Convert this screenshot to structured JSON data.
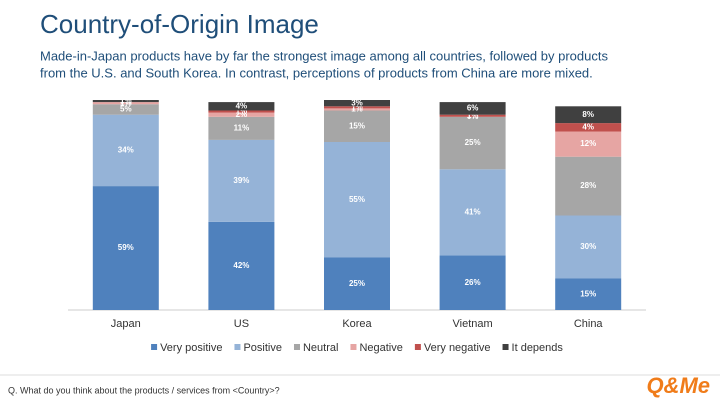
{
  "chart_data": {
    "type": "stacked-bar",
    "title": "Country-of-Origin Image",
    "subtitle": [
      "Made-in-Japan products have by far the strongest image among all countries, followed by products",
      "from the U.S. and South Korea. In contrast, perceptions of products from China are more mixed."
    ],
    "categories": [
      "Japan",
      "US",
      "Korea",
      "Vietnam",
      "China"
    ],
    "ylim": [
      0,
      100
    ],
    "series": [
      {
        "name": "Very positive",
        "color": "#4f81bd",
        "values": [
          59,
          42,
          25,
          26,
          15
        ],
        "value_labels": [
          "59%",
          "42%",
          "25%",
          "26%",
          "15%"
        ]
      },
      {
        "name": "Positive",
        "color": "#95b3d7",
        "values": [
          34,
          39,
          55,
          41,
          30
        ],
        "value_labels": [
          "34%",
          "39%",
          "55%",
          "41%",
          "30%"
        ]
      },
      {
        "name": "Neutral",
        "color": "#a6a6a6",
        "values": [
          5,
          11,
          15,
          25,
          28
        ],
        "value_labels": [
          "5%",
          "11%",
          "15%",
          "25%",
          "28%"
        ]
      },
      {
        "name": "Negative",
        "color": "#e6a5a3",
        "values": [
          1,
          2,
          1,
          0,
          12
        ],
        "value_labels": [
          "1%",
          "2%",
          "1%",
          "0%",
          "12%"
        ]
      },
      {
        "name": "Very negative",
        "color": "#c0504d",
        "values": [
          0,
          1,
          1,
          1,
          4
        ],
        "value_labels": [
          "0%",
          "1%",
          "1%",
          "1%",
          "4%"
        ]
      },
      {
        "name": "It depends",
        "color": "#404040",
        "values": [
          1,
          4,
          3,
          6,
          8
        ],
        "value_labels": [
          "1%",
          "4%",
          "3%",
          "6%",
          "8%"
        ]
      }
    ],
    "footnote": "Q. What do you think about the products / services from <Country>?",
    "logo": "Q&Me"
  }
}
